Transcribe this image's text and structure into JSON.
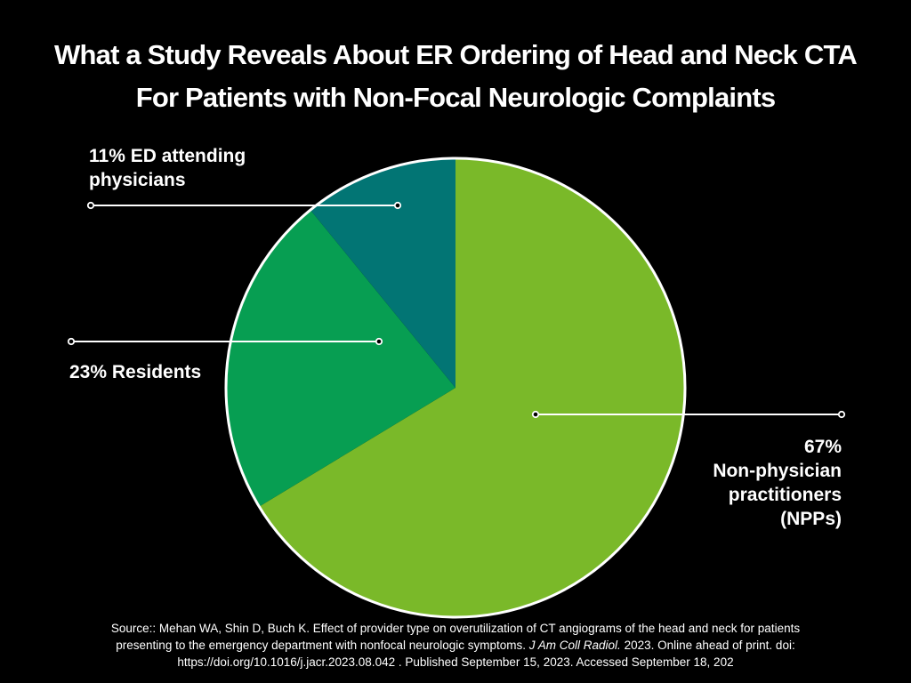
{
  "title": {
    "line1": "What a Study Reveals About ER Ordering of Head and Neck CTA",
    "line2": "For Patients with Non-Focal Neurologic Complaints"
  },
  "chart_data": {
    "type": "pie",
    "slices": [
      {
        "label": "Non-physician practitioners (NPPs)",
        "value": 67,
        "color": "#7ab929"
      },
      {
        "label": "Residents",
        "value": 23,
        "color": "#079e52"
      },
      {
        "label": "ED attending physicians",
        "value": 11,
        "color": "#027574"
      }
    ],
    "labels": {
      "ed": {
        "line1": "11% ED attending",
        "line2": "physicians"
      },
      "residents": {
        "line1": "23% Residents"
      },
      "npp": {
        "line1": "67%",
        "line2": "Non-physician",
        "line3": "practitioners",
        "line4": "(NPPs)"
      }
    },
    "border_color": "#ffffff"
  },
  "source": {
    "line1": "Source:: Mehan WA, Shin D, Buch K. Effect of provider type on overutilization of CT angiograms of the head and neck for patients",
    "line2_pre": "presenting to the emergency department with nonfocal neurologic symptoms. ",
    "line2_journal": "J Am Coll Radiol.",
    "line2_post": " 2023. Online ahead of print. doi:",
    "line3": "https://doi.org/10.1016/j.jacr.2023.08.042 . Published September 15, 2023. Accessed September 18, 202"
  }
}
